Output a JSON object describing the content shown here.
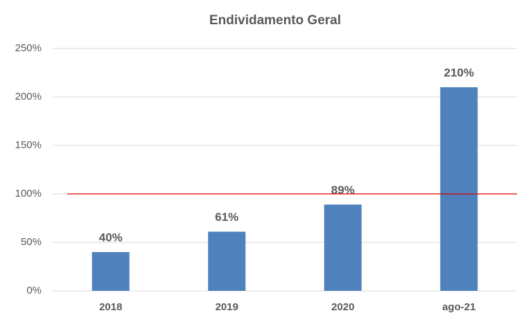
{
  "chart_data": {
    "type": "bar",
    "title": "Endividamento Geral",
    "categories": [
      "2018",
      "2019",
      "2020",
      "ago-21"
    ],
    "values": [
      40,
      61,
      89,
      210
    ],
    "value_labels": [
      "40%",
      "61%",
      "89%",
      "210%"
    ],
    "color": "#4f81bd",
    "ylim": [
      0,
      250
    ],
    "yticks": [
      {
        "value": 0,
        "label": "0%"
      },
      {
        "value": 50,
        "label": "50%"
      },
      {
        "value": 100,
        "label": "100%"
      },
      {
        "value": 150,
        "label": "150%"
      },
      {
        "value": 200,
        "label": "200%"
      },
      {
        "value": 250,
        "label": "250%"
      }
    ],
    "grid": true,
    "reference_line": {
      "value": 100,
      "color": "#e00000"
    }
  }
}
